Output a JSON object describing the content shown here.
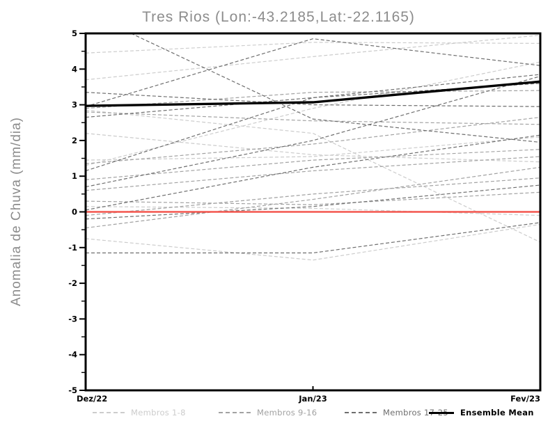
{
  "title": "Tres Rios (Lon:-43.2185,Lat:-22.1165)",
  "axes": {
    "ylabel": "Anomalia de Chuva (mm/dia)",
    "x_ticklabels": [
      "Dez/22",
      "Jan/23",
      "Fev/23"
    ],
    "y_ticklabels": [
      "5",
      "4",
      "3",
      "2",
      "1",
      "0",
      "-1",
      "-2",
      "-3",
      "-4",
      "-5"
    ]
  },
  "legend": {
    "items": [
      {
        "label": "Membros 1-8",
        "color": "#cccccc",
        "style": "dashed"
      },
      {
        "label": "Membros 9-16",
        "color": "#a2a2a2",
        "style": "dashed"
      },
      {
        "label": "Membros 17-25",
        "color": "#6e6e6e",
        "style": "dashed"
      },
      {
        "label": "Ensemble Mean",
        "color": "#000000",
        "style": "solid"
      }
    ]
  },
  "chart_data": {
    "type": "line",
    "title": "Tres Rios (Lon:-43.2185,Lat:-22.1165)",
    "xlabel": "",
    "ylabel": "Anomalia de Chuva (mm/dia)",
    "x": [
      "Dez/22",
      "Jan/23",
      "Fev/23"
    ],
    "ylim": [
      -5,
      5
    ],
    "y_tick_step": 1,
    "grid": false,
    "legend_position": "bottom",
    "zero_line": {
      "value": 0,
      "color": "#f4564e"
    },
    "ensemble_mean": {
      "label": "Ensemble Mean",
      "color": "#000000",
      "values": [
        2.97,
        3.07,
        3.65
      ]
    },
    "member_groups": [
      {
        "label": "Membros 1-8",
        "color": "#cccccc",
        "members": [
          [
            4.45,
            4.75,
            4.72
          ],
          [
            3.7,
            4.35,
            4.95
          ],
          [
            2.2,
            1.6,
            1.4
          ],
          [
            0.15,
            0.1,
            -0.1
          ],
          [
            -0.75,
            -1.35,
            -0.35
          ],
          [
            2.85,
            2.2,
            -0.85
          ],
          [
            1.45,
            1.55,
            2.1
          ],
          [
            1.3,
            2.9,
            4.2
          ]
        ]
      },
      {
        "label": "Membros 9-16",
        "color": "#a2a2a2",
        "members": [
          [
            2.8,
            2.55,
            2.45
          ],
          [
            1.35,
            1.9,
            2.65
          ],
          [
            0.9,
            1.45,
            1.75
          ],
          [
            -0.45,
            0.35,
            1.25
          ],
          [
            0.6,
            1.15,
            1.55
          ],
          [
            2.9,
            3.35,
            3.4
          ],
          [
            -0.1,
            0.5,
            0.95
          ],
          [
            0.3,
            0.2,
            0.55
          ]
        ]
      },
      {
        "label": "Membros 17-25",
        "color": "#6e6e6e",
        "members": [
          [
            5.6,
            2.6,
            1.95
          ],
          [
            3.35,
            3.0,
            2.95
          ],
          [
            2.95,
            4.85,
            4.1
          ],
          [
            2.65,
            3.2,
            3.85
          ],
          [
            0.7,
            2.0,
            3.8
          ],
          [
            0.05,
            1.25,
            2.15
          ],
          [
            -0.2,
            0.15,
            0.75
          ],
          [
            -1.15,
            -1.15,
            -0.3
          ],
          [
            1.15,
            3.2,
            3.6
          ]
        ]
      }
    ]
  }
}
